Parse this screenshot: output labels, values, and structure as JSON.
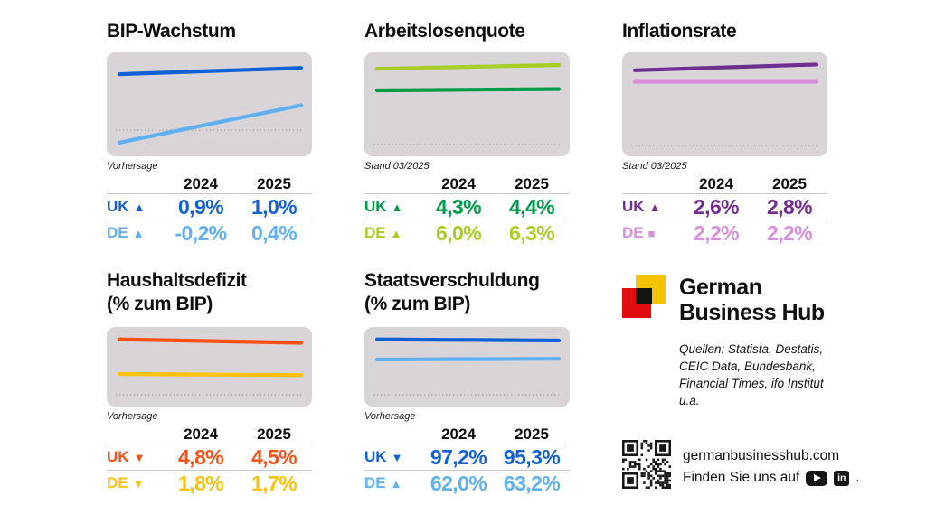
{
  "colors": {
    "uk_blue": "#1161d6",
    "de_blue": "#5fb1f2",
    "uk_green": "#009b48",
    "de_green": "#a9cd27",
    "uk_purple": "#702e91",
    "de_pink": "#d98fd9",
    "uk_orange": "#fb4f14",
    "de_yellow": "#fdc20f",
    "chart_bg": "#d8d4d7",
    "baseline_dots": "#a3a0a3",
    "table_rule": "#c9c9c9",
    "logo_red": "#e10d11",
    "logo_yellow": "#f5c400",
    "logo_black": "#141414"
  },
  "symbols": {
    "up": "▲",
    "down": "▼",
    "flat": "■"
  },
  "ui": {
    "rows": [
      {
        "modules": [
          {
            "title": "BIP-Wachstum",
            "subtitle": "",
            "note": "Vorhersage",
            "years": [
              "2024",
              "2025"
            ],
            "table": [
              {
                "label": "UK",
                "symbol": "up",
                "color": "uk_blue",
                "values": [
                  "0,9%",
                  "1,0%"
                ]
              },
              {
                "label": "DE",
                "symbol": "up",
                "color": "de_blue",
                "values": [
                  "-0,2%",
                  "0,4%"
                ]
              }
            ],
            "chart": {
              "ymin": -0.42,
              "ymax": 1.25,
              "baseline": 0,
              "series": [
                {
                  "name": "UK",
                  "color": "uk_blue",
                  "values": [
                    0.9,
                    1.0
                  ]
                },
                {
                  "name": "DE",
                  "color": "de_blue",
                  "values": [
                    -0.2,
                    0.4
                  ]
                }
              ]
            }
          },
          {
            "title": "Arbeitslosenquote",
            "subtitle": "",
            "note": "Stand 03/2025",
            "years": [
              "2024",
              "2025"
            ],
            "table": [
              {
                "label": "UK",
                "symbol": "up",
                "color": "uk_green",
                "values": [
                  "4,3%",
                  "4,4%"
                ]
              },
              {
                "label": "DE",
                "symbol": "up",
                "color": "de_green",
                "values": [
                  "6,0%",
                  "6,3%"
                ]
              }
            ],
            "chart": {
              "ymin": -0.92,
              "ymax": 7.3,
              "baseline": 0,
              "series": [
                {
                  "name": "DE",
                  "color": "de_green",
                  "values": [
                    6.0,
                    6.3
                  ]
                },
                {
                  "name": "UK",
                  "color": "uk_green",
                  "values": [
                    4.3,
                    4.4
                  ]
                }
              ]
            }
          },
          {
            "title": "Inflationsrate",
            "subtitle": "",
            "note": "Stand 03/2025",
            "years": [
              "2024",
              "2025"
            ],
            "table": [
              {
                "label": "UK",
                "symbol": "up",
                "color": "uk_purple",
                "values": [
                  "2,6%",
                  "2,8%"
                ]
              },
              {
                "label": "DE",
                "symbol": "flat",
                "color": "de_pink",
                "values": [
                  "2,2%",
                  "2,2%"
                ]
              }
            ],
            "chart": {
              "ymin": -0.38,
              "ymax": 3.22,
              "baseline": 0,
              "series": [
                {
                  "name": "UK",
                  "color": "uk_purple",
                  "values": [
                    2.6,
                    2.8
                  ]
                },
                {
                  "name": "DE",
                  "color": "de_pink",
                  "values": [
                    2.2,
                    2.2
                  ]
                }
              ]
            }
          }
        ]
      },
      {
        "modules": [
          {
            "title": "Haushaltsdefizit",
            "subtitle": "(% zum BIP)",
            "note": "Vorhersage",
            "years": [
              "2024",
              "2025"
            ],
            "table": [
              {
                "label": "UK",
                "symbol": "down",
                "color": "uk_orange",
                "values": [
                  "4,8%",
                  "4,5%"
                ]
              },
              {
                "label": "DE",
                "symbol": "down",
                "color": "de_yellow",
                "values": [
                  "1,8%",
                  "1,7%"
                ]
              }
            ],
            "chart": {
              "ymin": -1.02,
              "ymax": 5.87,
              "baseline": 0,
              "series": [
                {
                  "name": "UK",
                  "color": "uk_orange",
                  "values": [
                    4.8,
                    4.5
                  ]
                },
                {
                  "name": "DE",
                  "color": "de_yellow",
                  "values": [
                    1.8,
                    1.7
                  ]
                }
              ]
            }
          },
          {
            "title": "Staatsverschuldung",
            "subtitle": "(% zum BIP)",
            "note": "Vorhersage",
            "years": [
              "2024",
              "2025"
            ],
            "table": [
              {
                "label": "UK",
                "symbol": "down",
                "color": "uk_blue",
                "values": [
                  "97,2%",
                  "95,3%"
                ]
              },
              {
                "label": "DE",
                "symbol": "up",
                "color": "de_blue",
                "values": [
                  "62,0%",
                  "63,2%"
                ]
              }
            ],
            "chart": {
              "ymin": -20.6,
              "ymax": 119.0,
              "baseline": 0,
              "series": [
                {
                  "name": "UK",
                  "color": "uk_blue",
                  "values": [
                    97.2,
                    95.3
                  ]
                },
                {
                  "name": "DE",
                  "color": "de_blue",
                  "values": [
                    62.0,
                    63.2
                  ]
                }
              ]
            }
          }
        ]
      }
    ],
    "brand": {
      "name_line1": "German",
      "name_line2": "Business Hub",
      "sources": "Quellen: Statista, Destatis, CEIC Data, Bundesbank, Financial Times, ifo Institut u.a."
    },
    "footer": {
      "website": "germanbusinesshub.com",
      "find_us": "Finden Sie uns auf",
      "icons": [
        "youtube",
        "linkedin"
      ],
      "suffix": "."
    }
  },
  "chart_data": [
    {
      "type": "line",
      "title": "BIP-Wachstum",
      "note": "Vorhersage",
      "categories": [
        "2024",
        "2025"
      ],
      "series": [
        {
          "name": "UK",
          "values": [
            0.9,
            1.0
          ]
        },
        {
          "name": "DE",
          "values": [
            -0.2,
            0.4
          ]
        }
      ],
      "ylim": [
        -0.42,
        1.25
      ],
      "baseline": 0,
      "unit": "%"
    },
    {
      "type": "line",
      "title": "Arbeitslosenquote",
      "note": "Stand 03/2025",
      "categories": [
        "2024",
        "2025"
      ],
      "series": [
        {
          "name": "UK",
          "values": [
            4.3,
            4.4
          ]
        },
        {
          "name": "DE",
          "values": [
            6.0,
            6.3
          ]
        }
      ],
      "ylim": [
        -0.92,
        7.3
      ],
      "baseline": 0,
      "unit": "%"
    },
    {
      "type": "line",
      "title": "Inflationsrate",
      "note": "Stand 03/2025",
      "categories": [
        "2024",
        "2025"
      ],
      "series": [
        {
          "name": "UK",
          "values": [
            2.6,
            2.8
          ]
        },
        {
          "name": "DE",
          "values": [
            2.2,
            2.2
          ]
        }
      ],
      "ylim": [
        -0.38,
        3.22
      ],
      "baseline": 0,
      "unit": "%"
    },
    {
      "type": "line",
      "title": "Haushaltsdefizit (% zum BIP)",
      "note": "Vorhersage",
      "categories": [
        "2024",
        "2025"
      ],
      "series": [
        {
          "name": "UK",
          "values": [
            4.8,
            4.5
          ]
        },
        {
          "name": "DE",
          "values": [
            1.8,
            1.7
          ]
        }
      ],
      "ylim": [
        -1.02,
        5.87
      ],
      "baseline": 0,
      "unit": "%"
    },
    {
      "type": "line",
      "title": "Staatsverschuldung (% zum BIP)",
      "note": "Vorhersage",
      "categories": [
        "2024",
        "2025"
      ],
      "series": [
        {
          "name": "UK",
          "values": [
            97.2,
            95.3
          ]
        },
        {
          "name": "DE",
          "values": [
            62.0,
            63.2
          ]
        }
      ],
      "ylim": [
        -20.6,
        119.0
      ],
      "baseline": 0,
      "unit": "%"
    }
  ]
}
